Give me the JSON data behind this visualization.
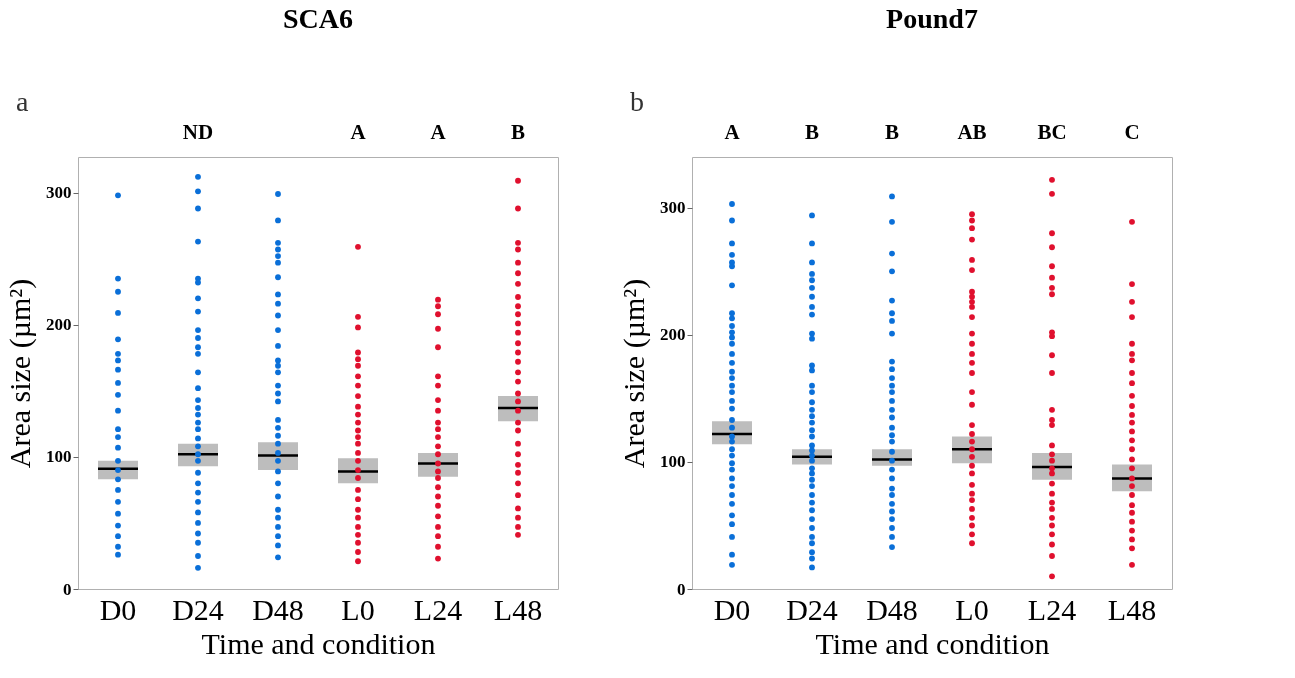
{
  "chart_data": [
    {
      "type": "scatter",
      "title": "SCA6",
      "xlabel": "Time and condition",
      "ylabel": "Area size (µm²)",
      "categories": [
        "D0",
        "D24",
        "D48",
        "L0",
        "L24",
        "L48"
      ],
      "ylim": [
        0,
        327
      ],
      "yticks": [
        0,
        100,
        200,
        300
      ],
      "annotations": [
        "a",
        "ND",
        "A",
        "A",
        "B"
      ],
      "series": [
        {
          "color": "#0a6fd8",
          "marker": "circle",
          "x": [
            "D0",
            "D0",
            "D0",
            "D0",
            "D0",
            "D0",
            "D0",
            "D0",
            "D0",
            "D0",
            "D0",
            "D0",
            "D0",
            "D0",
            "D0",
            "D0",
            "D0",
            "D0",
            "D0",
            "D0",
            "D0",
            "D0",
            "D0",
            "D0"
          ],
          "values": [
            298,
            235,
            225,
            209,
            189,
            178,
            173,
            166,
            156,
            147,
            135,
            121,
            115,
            107,
            97,
            90,
            83,
            75,
            66,
            57,
            48,
            40,
            32,
            26
          ]
        },
        {
          "color": "#0a6fd8",
          "marker": "circle",
          "x": [
            "D24",
            "D24",
            "D24",
            "D24",
            "D24",
            "D24",
            "D24",
            "D24",
            "D24",
            "D24",
            "D24",
            "D24",
            "D24",
            "D24",
            "D24",
            "D24",
            "D24",
            "D24",
            "D24",
            "D24",
            "D24",
            "D24",
            "D24",
            "D24",
            "D24",
            "D24",
            "D24",
            "D24",
            "D24",
            "D24",
            "D24",
            "D24",
            "D24"
          ],
          "values": [
            312,
            301,
            288,
            263,
            235,
            232,
            220,
            210,
            196,
            190,
            183,
            178,
            164,
            152,
            143,
            137,
            132,
            126,
            121,
            114,
            108,
            102,
            97,
            88,
            80,
            73,
            66,
            58,
            50,
            42,
            35,
            25,
            16
          ]
        },
        {
          "color": "#0a6fd8",
          "marker": "circle",
          "x": [
            "D48",
            "D48",
            "D48",
            "D48",
            "D48",
            "D48",
            "D48",
            "D48",
            "D48",
            "D48",
            "D48",
            "D48",
            "D48",
            "D48",
            "D48",
            "D48",
            "D48",
            "D48",
            "D48",
            "D48",
            "D48",
            "D48",
            "D48",
            "D48",
            "D48",
            "D48",
            "D48",
            "D48",
            "D48",
            "D48",
            "D48",
            "D48",
            "D48"
          ],
          "values": [
            299,
            279,
            262,
            257,
            252,
            247,
            236,
            223,
            216,
            207,
            196,
            184,
            173,
            169,
            164,
            154,
            148,
            142,
            128,
            122,
            116,
            110,
            103,
            97,
            89,
            80,
            70,
            60,
            54,
            47,
            40,
            33,
            24
          ]
        },
        {
          "color": "#e0102e",
          "marker": "circle",
          "x": [
            "L0",
            "L0",
            "L0",
            "L0",
            "L0",
            "L0",
            "L0",
            "L0",
            "L0",
            "L0",
            "L0",
            "L0",
            "L0",
            "L0",
            "L0",
            "L0",
            "L0",
            "L0",
            "L0",
            "L0",
            "L0",
            "L0",
            "L0",
            "L0",
            "L0",
            "L0",
            "L0",
            "L0"
          ],
          "values": [
            259,
            206,
            198,
            179,
            174,
            169,
            161,
            154,
            146,
            138,
            132,
            126,
            120,
            115,
            110,
            103,
            97,
            90,
            84,
            75,
            68,
            60,
            54,
            47,
            41,
            35,
            28,
            21
          ]
        },
        {
          "color": "#e0102e",
          "marker": "circle",
          "x": [
            "L24",
            "L24",
            "L24",
            "L24",
            "L24",
            "L24",
            "L24",
            "L24",
            "L24",
            "L24",
            "L24",
            "L24",
            "L24",
            "L24",
            "L24",
            "L24",
            "L24",
            "L24",
            "L24",
            "L24",
            "L24",
            "L24",
            "L24",
            "L24",
            "L24"
          ],
          "values": [
            219,
            214,
            208,
            197,
            183,
            161,
            154,
            143,
            135,
            126,
            121,
            115,
            108,
            102,
            95,
            89,
            84,
            77,
            70,
            63,
            55,
            47,
            40,
            32,
            23
          ]
        },
        {
          "color": "#e0102e",
          "marker": "circle",
          "x": [
            "L48",
            "L48",
            "L48",
            "L48",
            "L48",
            "L48",
            "L48",
            "L48",
            "L48",
            "L48",
            "L48",
            "L48",
            "L48",
            "L48",
            "L48",
            "L48",
            "L48",
            "L48",
            "L48",
            "L48",
            "L48",
            "L48",
            "L48",
            "L48",
            "L48",
            "L48",
            "L48",
            "L48",
            "L48",
            "L48",
            "L48",
            "L48"
          ],
          "values": [
            309,
            288,
            262,
            257,
            247,
            239,
            231,
            221,
            214,
            208,
            201,
            194,
            186,
            179,
            172,
            164,
            157,
            148,
            142,
            135,
            126,
            120,
            110,
            102,
            94,
            88,
            80,
            71,
            61,
            54,
            47,
            41
          ]
        },
        {
          "type": "box",
          "color": "#bdbdbd",
          "boxes": [
            {
              "low": 83,
              "q1": 83,
              "median": 91,
              "q3": 97,
              "high": 97
            },
            {
              "low": 93,
              "q1": 93,
              "median": 102,
              "q3": 110,
              "high": 110
            },
            {
              "low": 90,
              "q1": 90,
              "median": 101,
              "q3": 111,
              "high": 111
            },
            {
              "low": 80,
              "q1": 80,
              "median": 89,
              "q3": 99,
              "high": 99
            },
            {
              "low": 85,
              "q1": 85,
              "median": 95,
              "q3": 103,
              "high": 103
            },
            {
              "low": 127,
              "q1": 127,
              "median": 137,
              "q3": 146,
              "high": 146
            }
          ]
        }
      ]
    },
    {
      "type": "scatter",
      "title": "Pound7",
      "xlabel": "Time and condition",
      "ylabel": "Area size (µm²)",
      "categories": [
        "D0",
        "D24",
        "D48",
        "L0",
        "L24",
        "L48"
      ],
      "ylim": [
        0,
        340
      ],
      "yticks": [
        0,
        100,
        200,
        300
      ],
      "annotations": [
        "b",
        "A",
        "B",
        "B",
        "AB",
        "BC",
        "C"
      ],
      "series": [
        {
          "color": "#0a6fd8",
          "marker": "circle",
          "x": [
            "D0",
            "D0",
            "D0",
            "D0",
            "D0",
            "D0",
            "D0",
            "D0",
            "D0",
            "D0",
            "D0",
            "D0",
            "D0",
            "D0",
            "D0",
            "D0",
            "D0",
            "D0",
            "D0",
            "D0",
            "D0",
            "D0",
            "D0",
            "D0",
            "D0",
            "D0",
            "D0",
            "D0",
            "D0",
            "D0",
            "D0",
            "D0",
            "D0",
            "D0",
            "D0",
            "D0",
            "D0",
            "D0"
          ],
          "values": [
            303,
            290,
            272,
            263,
            257,
            254,
            239,
            217,
            213,
            207,
            202,
            198,
            193,
            185,
            178,
            171,
            166,
            160,
            155,
            148,
            142,
            133,
            127,
            120,
            116,
            110,
            105,
            99,
            94,
            87,
            81,
            74,
            67,
            58,
            51,
            41,
            27,
            19
          ]
        },
        {
          "color": "#0a6fd8",
          "marker": "circle",
          "x": [
            "D24",
            "D24",
            "D24",
            "D24",
            "D24",
            "D24",
            "D24",
            "D24",
            "D24",
            "D24",
            "D24",
            "D24",
            "D24",
            "D24",
            "D24",
            "D24",
            "D24",
            "D24",
            "D24",
            "D24",
            "D24",
            "D24",
            "D24",
            "D24",
            "D24",
            "D24",
            "D24",
            "D24",
            "D24",
            "D24",
            "D24",
            "D24",
            "D24",
            "D24",
            "D24",
            "D24",
            "D24",
            "D24",
            "D24"
          ],
          "values": [
            294,
            272,
            257,
            248,
            243,
            237,
            230,
            222,
            216,
            201,
            197,
            176,
            172,
            160,
            155,
            147,
            141,
            136,
            131,
            125,
            120,
            113,
            109,
            105,
            101,
            95,
            91,
            86,
            81,
            74,
            68,
            62,
            55,
            48,
            41,
            36,
            29,
            24,
            17
          ]
        },
        {
          "color": "#0a6fd8",
          "marker": "circle",
          "x": [
            "D48",
            "D48",
            "D48",
            "D48",
            "D48",
            "D48",
            "D48",
            "D48",
            "D48",
            "D48",
            "D48",
            "D48",
            "D48",
            "D48",
            "D48",
            "D48",
            "D48",
            "D48",
            "D48",
            "D48",
            "D48",
            "D48",
            "D48",
            "D48",
            "D48",
            "D48",
            "D48",
            "D48",
            "D48",
            "D48",
            "D48"
          ],
          "values": [
            309,
            289,
            264,
            250,
            227,
            217,
            211,
            201,
            179,
            173,
            166,
            160,
            155,
            148,
            141,
            135,
            127,
            121,
            116,
            108,
            101,
            94,
            87,
            79,
            74,
            67,
            61,
            55,
            48,
            41,
            33
          ]
        },
        {
          "color": "#e0102e",
          "marker": "circle",
          "x": [
            "L0",
            "L0",
            "L0",
            "L0",
            "L0",
            "L0",
            "L0",
            "L0",
            "L0",
            "L0",
            "L0",
            "L0",
            "L0",
            "L0",
            "L0",
            "L0",
            "L0",
            "L0",
            "L0",
            "L0",
            "L0",
            "L0",
            "L0",
            "L0",
            "L0",
            "L0",
            "L0",
            "L0",
            "L0",
            "L0",
            "L0",
            "L0",
            "L0"
          ],
          "values": [
            295,
            290,
            284,
            275,
            259,
            251,
            234,
            230,
            226,
            222,
            214,
            201,
            193,
            185,
            178,
            170,
            155,
            145,
            129,
            122,
            116,
            110,
            104,
            97,
            91,
            82,
            75,
            70,
            63,
            56,
            50,
            43,
            36
          ]
        },
        {
          "color": "#e0102e",
          "marker": "circle",
          "x": [
            "L24",
            "L24",
            "L24",
            "L24",
            "L24",
            "L24",
            "L24",
            "L24",
            "L24",
            "L24",
            "L24",
            "L24",
            "L24",
            "L24",
            "L24",
            "L24",
            "L24",
            "L24",
            "L24",
            "L24",
            "L24",
            "L24",
            "L24",
            "L24",
            "L24",
            "L24",
            "L24",
            "L24",
            "L24",
            "L24"
          ],
          "values": [
            322,
            311,
            280,
            269,
            254,
            245,
            237,
            232,
            202,
            199,
            184,
            170,
            141,
            133,
            129,
            113,
            106,
            101,
            95,
            91,
            83,
            75,
            68,
            63,
            56,
            50,
            43,
            35,
            26,
            10
          ]
        },
        {
          "color": "#e0102e",
          "marker": "circle",
          "x": [
            "L48",
            "L48",
            "L48",
            "L48",
            "L48",
            "L48",
            "L48",
            "L48",
            "L48",
            "L48",
            "L48",
            "L48",
            "L48",
            "L48",
            "L48",
            "L48",
            "L48",
            "L48",
            "L48",
            "L48",
            "L48",
            "L48",
            "L48",
            "L48",
            "L48",
            "L48",
            "L48",
            "L48"
          ],
          "values": [
            289,
            240,
            226,
            214,
            193,
            185,
            180,
            170,
            162,
            152,
            144,
            137,
            131,
            124,
            117,
            110,
            102,
            95,
            87,
            81,
            74,
            66,
            60,
            53,
            46,
            39,
            32,
            19
          ]
        },
        {
          "type": "box",
          "color": "#bdbdbd",
          "boxes": [
            {
              "low": 114,
              "q1": 114,
              "median": 122,
              "q3": 132,
              "high": 132
            },
            {
              "low": 98,
              "q1": 98,
              "median": 104,
              "q3": 110,
              "high": 110
            },
            {
              "low": 97,
              "q1": 97,
              "median": 102,
              "q3": 110,
              "high": 110
            },
            {
              "low": 99,
              "q1": 99,
              "median": 110,
              "q3": 120,
              "high": 120
            },
            {
              "low": 86,
              "q1": 86,
              "median": 96,
              "q3": 107,
              "high": 107
            },
            {
              "low": 77,
              "q1": 77,
              "median": 87,
              "q3": 98,
              "high": 98
            }
          ]
        }
      ]
    }
  ]
}
